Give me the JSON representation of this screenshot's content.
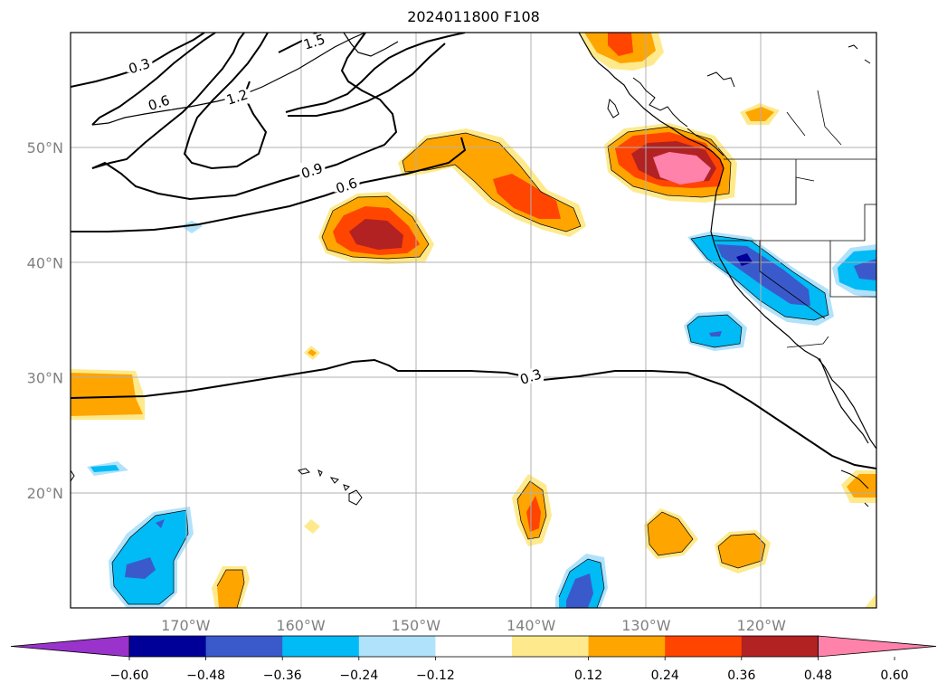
{
  "title": "2024011800 F108",
  "map": {
    "lat_labels": [
      {
        "value": 50,
        "text": "50°N"
      },
      {
        "value": 40,
        "text": "40°N"
      },
      {
        "value": 30,
        "text": "30°N"
      },
      {
        "value": 20,
        "text": "20°N"
      }
    ],
    "lon_labels": [
      {
        "value": -170,
        "text": "170°W"
      },
      {
        "value": -160,
        "text": "160°W"
      },
      {
        "value": -150,
        "text": "150°W"
      },
      {
        "value": -140,
        "text": "140°W"
      },
      {
        "value": -130,
        "text": "130°W"
      },
      {
        "value": -120,
        "text": "120°W"
      }
    ],
    "contour_labels": [
      {
        "text": "0.3",
        "lon": -174.0,
        "lat": 57.0
      },
      {
        "text": "0.6",
        "lon": -172.3,
        "lat": 53.8
      },
      {
        "text": "1.5",
        "lon": -158.8,
        "lat": 59.1
      },
      {
        "text": "1.2",
        "lon": -165.5,
        "lat": 54.3
      },
      {
        "text": "0.9",
        "lon": -159.0,
        "lat": 47.9
      },
      {
        "text": "0.6",
        "lon": -156.0,
        "lat": 46.6
      },
      {
        "text": "0.3",
        "lon": -140.0,
        "lat": 30.0
      }
    ],
    "label_color": "#808080",
    "grid_color": "#b0b0b0"
  },
  "colorbar": {
    "tick_labels": [
      "−0.60",
      "−0.48",
      "−0.36",
      "−0.24",
      "−0.12",
      "0.12",
      "0.24",
      "0.36",
      "0.48",
      "0.60"
    ],
    "colors": [
      "#9933cc",
      "#000099",
      "#3a5acc",
      "#00bbf5",
      "#b0e2fb",
      "#ffffff",
      "#feea8c",
      "#ffa500",
      "#ff4500",
      "#b22222",
      "#ff82ab"
    ]
  },
  "shading_palette": {
    "yellow": "#feea8c",
    "orange": "#ffa500",
    "red_orange": "#ff4500",
    "dark_red": "#b22222",
    "pink": "#ff82ab",
    "light_blue": "#b0e2fb",
    "cyan": "#00bbf5",
    "blue": "#3a5acc",
    "navy": "#000099"
  }
}
